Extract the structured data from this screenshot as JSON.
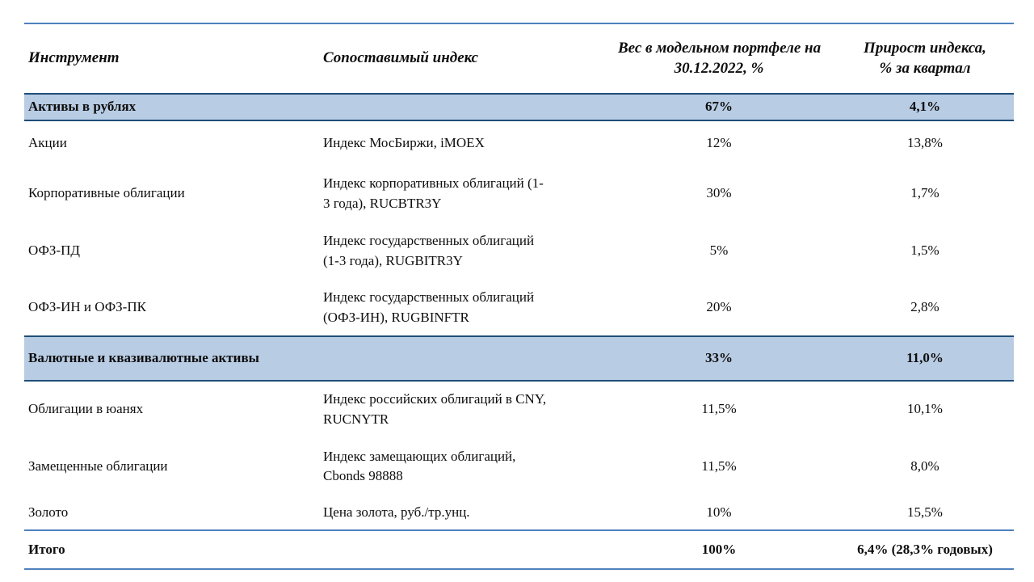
{
  "colors": {
    "band_fill": "#b8cce4",
    "band_border": "#1f4e79",
    "rule": "#4f81bd",
    "text": "#0d0d0d",
    "background": "#ffffff"
  },
  "table": {
    "columns": [
      {
        "label": "Инструмент"
      },
      {
        "label": "Сопоставимый индекс"
      },
      {
        "label": "Вес в модельном портфеле на\n30.12.2022, %"
      },
      {
        "label": "Прирост индекса,\n% за квартал"
      }
    ],
    "rows": [
      {
        "type": "section",
        "instrument": "Активы в рублях",
        "index": "",
        "weight": "67%",
        "growth": "4,1%"
      },
      {
        "type": "data",
        "instrument": "Акции",
        "index": "Индекс МосБиржи, iMOEX",
        "weight": "12%",
        "growth": "13,8%"
      },
      {
        "type": "data",
        "instrument": "Корпоративные облигации",
        "index": "Индекс корпоративных облигаций (1-\n3 года), RUCBTR3Y",
        "weight": "30%",
        "growth": "1,7%"
      },
      {
        "type": "data",
        "instrument": "ОФЗ-ПД",
        "index": "Индекс государственных облигаций\n(1-3 года), RUGBITR3Y",
        "weight": "5%",
        "growth": "1,5%"
      },
      {
        "type": "data",
        "instrument": "ОФЗ-ИН и ОФЗ-ПК",
        "index": "Индекс государственных облигаций\n(ОФЗ-ИН), RUGBINFTR",
        "weight": "20%",
        "growth": "2,8%"
      },
      {
        "type": "section",
        "instrument": "Валютные и квазивалютные активы",
        "index": "",
        "weight": "33%",
        "growth": "11,0%"
      },
      {
        "type": "data",
        "instrument": "Облигации в юанях",
        "index": "Индекс российских облигаций в CNY,\nRUCNYTR",
        "weight": "11,5%",
        "growth": "10,1%"
      },
      {
        "type": "data",
        "instrument": "Замещенные облигации",
        "index": "Индекс замещающих облигаций,\nCbonds 98888",
        "weight": "11,5%",
        "growth": "8,0%"
      },
      {
        "type": "data",
        "instrument": "Золото",
        "index": "Цена золота, руб./тр.унц.",
        "weight": "10%",
        "growth": "15,5%"
      },
      {
        "type": "total",
        "instrument": "Итого",
        "index": "",
        "weight": "100%",
        "growth": "6,4% (28,3% годовых)"
      }
    ]
  }
}
